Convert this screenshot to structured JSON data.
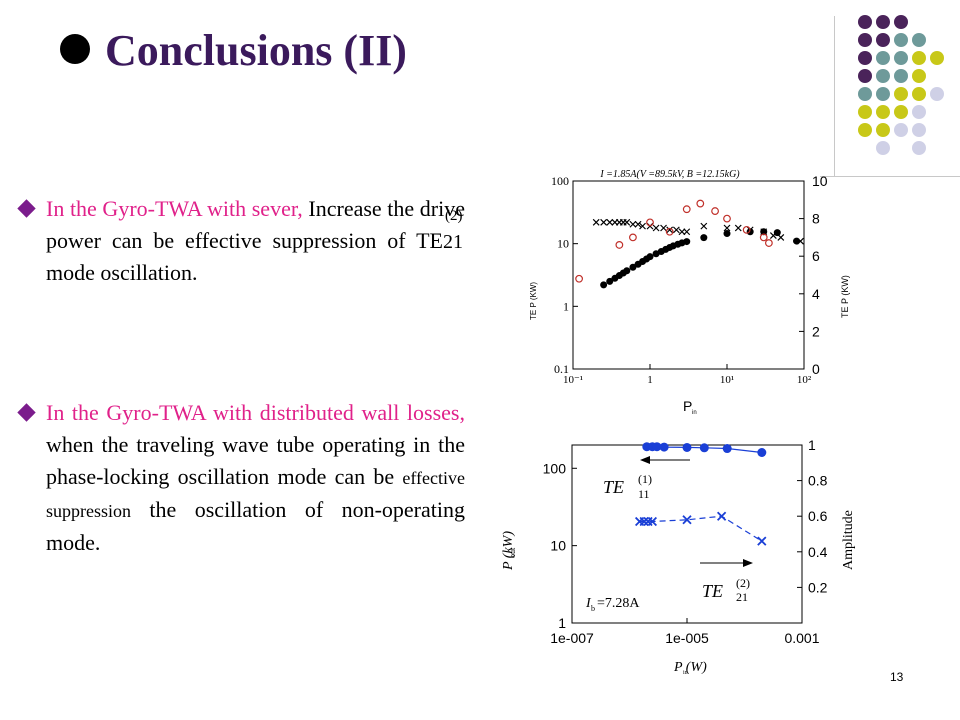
{
  "slide": {
    "title": "Conclusions (II)",
    "page_number": "13",
    "bullets": [
      {
        "part1": "In the Gyro-TWA with sever,",
        "part2": " Increase the drive power can be effective suppression of TE",
        "sup": "(2)",
        "sub": "21",
        "part3": " mode oscillation."
      },
      {
        "part1": "In the Gyro-TWA with distributed wall losses,",
        "part2": " when the traveling    wave tube operating in the phase-locking oscillation mode can be ",
        "part3": "effective suppression",
        "part4": " the oscillation of non-operating mode."
      }
    ]
  },
  "chart_data": [
    {
      "type": "scatter",
      "title": "I =1.85A(V =89.5kV, B =12.15kG)",
      "xlabel": "P",
      "xlabel_sub": "in",
      "ylabel_left": "TE   P    (KW)",
      "ylabel_right": "TE   P    (KW)",
      "x_scale": "log",
      "y_left_scale": "log",
      "x_ticks": [
        "10⁻¹",
        "1",
        "10¹",
        "10²"
      ],
      "y_left_ticks": [
        "0.1",
        "1",
        "10",
        "100"
      ],
      "y_right_ticks": [
        "0",
        "2",
        "4",
        "6",
        "8",
        "10"
      ],
      "xlim": [
        0.1,
        100
      ],
      "ylim_left": [
        0.1,
        100
      ],
      "ylim_right": [
        0,
        10
      ],
      "series": [
        {
          "marker": "filled-circle",
          "axis": "left",
          "x": [
            0.25,
            0.3,
            0.35,
            0.4,
            0.45,
            0.5,
            0.6,
            0.7,
            0.8,
            0.9,
            1.0,
            1.2,
            1.4,
            1.6,
            1.8,
            2.0,
            2.3,
            2.6,
            3.0,
            5.0,
            10,
            20,
            30,
            45,
            80
          ],
          "y": [
            2.2,
            2.5,
            2.8,
            3.1,
            3.4,
            3.7,
            4.2,
            4.7,
            5.2,
            5.7,
            6.2,
            6.9,
            7.5,
            8.1,
            8.7,
            9.2,
            9.8,
            10.3,
            10.8,
            12.5,
            14.5,
            15.5,
            15.5,
            15.0,
            11.0
          ]
        },
        {
          "marker": "x",
          "axis": "right",
          "x": [
            0.2,
            0.25,
            0.3,
            0.35,
            0.4,
            0.45,
            0.5,
            0.6,
            0.7,
            0.8,
            1.0,
            1.2,
            1.5,
            1.8,
            2.2,
            2.6,
            3.0,
            5.0,
            10,
            14,
            20,
            30,
            40,
            50,
            90
          ],
          "y": [
            7.8,
            7.8,
            7.8,
            7.8,
            7.8,
            7.8,
            7.8,
            7.7,
            7.7,
            7.6,
            7.6,
            7.5,
            7.5,
            7.4,
            7.4,
            7.3,
            7.3,
            7.6,
            7.5,
            7.5,
            7.4,
            7.3,
            7.1,
            7.0,
            6.8
          ]
        },
        {
          "marker": "open-circle",
          "axis": "right",
          "x": [
            0.12,
            0.4,
            0.6,
            1.0,
            1.8,
            3.0,
            4.5,
            7.0,
            10,
            18,
            30,
            35
          ],
          "y": [
            4.8,
            6.6,
            7.0,
            7.8,
            7.3,
            8.5,
            8.8,
            8.4,
            8.0,
            7.4,
            7.0,
            6.7
          ]
        }
      ]
    },
    {
      "type": "line",
      "xlabel": "P   (W)",
      "xlabel_sub": "in",
      "ylabel_left": "P    (kW)",
      "ylabel_left_sub": "out",
      "ylabel_right": "Amplitude",
      "x_scale": "log",
      "y_left_scale": "log",
      "x_ticks": [
        "1e-007",
        "1e-005",
        "0.001"
      ],
      "y_left_ticks": [
        "1",
        "10",
        "100"
      ],
      "y_right_ticks": [
        "0.2",
        "0.4",
        "0.6",
        "0.8",
        "1"
      ],
      "xlim": [
        1e-07,
        0.001
      ],
      "ylim_left": [
        1,
        200
      ],
      "ylim_right": [
        0,
        1
      ],
      "annotations": {
        "te11": "TE",
        "te11_sup": "(1)",
        "te11_sub": "11",
        "te21": "TE",
        "te21_sup": "(2)",
        "te21_sub": "21",
        "current": "I",
        "current_sub": "b",
        "current_value": "=7.28A"
      },
      "series": [
        {
          "marker": "filled-circle",
          "axis": "left",
          "color": "#1a3fd6",
          "x": [
            2e-06,
            2.5e-06,
            3e-06,
            4e-06,
            1e-05,
            2e-05,
            5e-05,
            0.0002
          ],
          "y": [
            190,
            190,
            190,
            188,
            186,
            184,
            180,
            160
          ]
        },
        {
          "marker": "x",
          "axis": "right",
          "color": "#1a3fd6",
          "x": [
            1.5e-06,
            1.8e-06,
            2.1e-06,
            2.5e-06,
            1e-05,
            4e-05,
            0.0002
          ],
          "y": [
            0.57,
            0.57,
            0.57,
            0.57,
            0.58,
            0.6,
            0.46
          ]
        }
      ]
    }
  ]
}
